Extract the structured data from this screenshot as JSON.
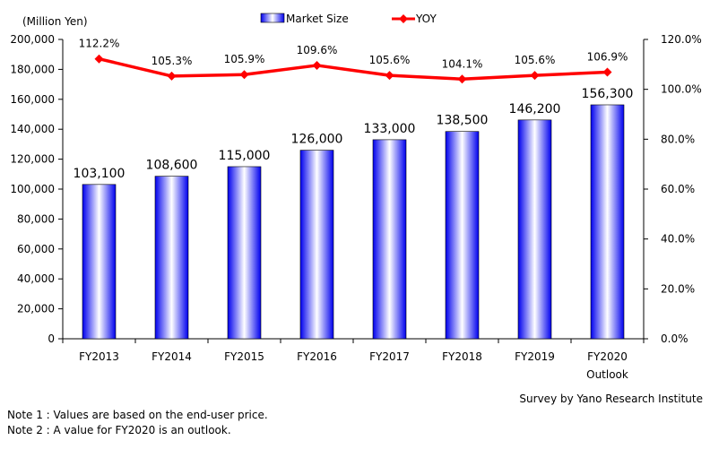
{
  "chart_data": {
    "type": "bar",
    "categories": [
      "FY2013",
      "FY2014",
      "FY2015",
      "FY2016",
      "FY2017",
      "FY2018",
      "FY2019",
      "FY2020"
    ],
    "category_sublabels": [
      "",
      "",
      "",
      "",
      "",
      "",
      "",
      "Outlook"
    ],
    "series": [
      {
        "name": "Market Size",
        "type": "bar",
        "axis": "left",
        "values": [
          103100,
          108600,
          115000,
          126000,
          133000,
          138500,
          146200,
          156300
        ],
        "labels": [
          "103,100",
          "108,600",
          "115,000",
          "126,000",
          "133,000",
          "138,500",
          "146,200",
          "156,300"
        ],
        "color": "#3333ff"
      },
      {
        "name": "YOY",
        "type": "line",
        "axis": "right",
        "values": [
          112.2,
          105.3,
          105.9,
          109.6,
          105.6,
          104.1,
          105.6,
          106.9
        ],
        "labels": [
          "112.2%",
          "105.3%",
          "105.9%",
          "109.6%",
          "105.6%",
          "104.1%",
          "105.6%",
          "106.9%"
        ],
        "color": "#ff0000"
      }
    ],
    "ylabel": "(Million  Yen)",
    "ylim": [
      0,
      200000
    ],
    "yticks": [
      "0",
      "20,000",
      "40,000",
      "60,000",
      "80,000",
      "100,000",
      "120,000",
      "140,000",
      "160,000",
      "180,000",
      "200,000"
    ],
    "y2lim": [
      0,
      120
    ],
    "y2ticks": [
      "0.0%",
      "20.0%",
      "40.0%",
      "60.0%",
      "80.0%",
      "100.0%",
      "120.0%"
    ],
    "legend_position": "top-center",
    "grid": false
  },
  "notes": [
    "Note 1 : Values are based on the end-user price.",
    "Note 2 : A value for FY2020 is an outlook."
  ],
  "source": "Survey by Yano Research Institute"
}
